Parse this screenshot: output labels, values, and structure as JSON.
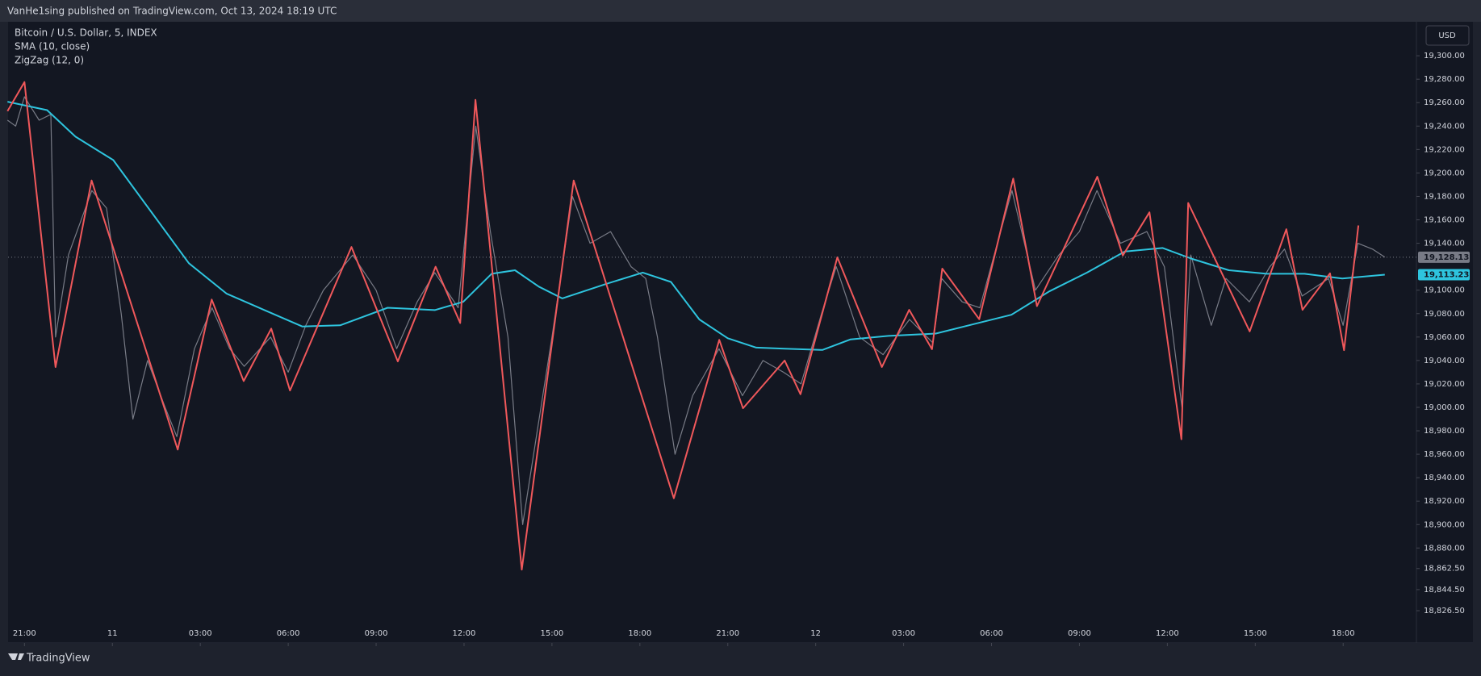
{
  "header": {
    "published": "VanHe1sing published on TradingView.com, Oct 13, 2024 18:19 UTC"
  },
  "footer": {
    "brand": "TradingView"
  },
  "currency": "USD",
  "chart_data": {
    "type": "line",
    "title": "Bitcoin / U.S. Dollar, 5, INDEX",
    "xlim": [
      -0.56,
      47.5
    ],
    "ylim": [
      18799,
      19329
    ],
    "xticks": [
      {
        "value": 0,
        "label": "21:00"
      },
      {
        "value": 3,
        "label": "11"
      },
      {
        "value": 6,
        "label": "03:00"
      },
      {
        "value": 9,
        "label": "06:00"
      },
      {
        "value": 12,
        "label": "09:00"
      },
      {
        "value": 15,
        "label": "12:00"
      },
      {
        "value": 18,
        "label": "15:00"
      },
      {
        "value": 21,
        "label": "18:00"
      },
      {
        "value": 24,
        "label": "21:00"
      },
      {
        "value": 27,
        "label": "12"
      },
      {
        "value": 30,
        "label": "03:00"
      },
      {
        "value": 33,
        "label": "06:00"
      },
      {
        "value": 36,
        "label": "09:00"
      },
      {
        "value": 39,
        "label": "12:00"
      },
      {
        "value": 42,
        "label": "15:00"
      },
      {
        "value": 45,
        "label": "18:00"
      }
    ],
    "yticks": [
      {
        "value": 19300,
        "label": "19,300.00"
      },
      {
        "value": 19280,
        "label": "19,280.00"
      },
      {
        "value": 19260,
        "label": "19,260.00"
      },
      {
        "value": 19240,
        "label": "19,240.00"
      },
      {
        "value": 19220,
        "label": "19,220.00"
      },
      {
        "value": 19200,
        "label": "19,200.00"
      },
      {
        "value": 19180,
        "label": "19,180.00"
      },
      {
        "value": 19160,
        "label": "19,160.00"
      },
      {
        "value": 19140,
        "label": "19,140.00"
      },
      {
        "value": 19100,
        "label": "19,100.00"
      },
      {
        "value": 19080,
        "label": "19,080.00"
      },
      {
        "value": 19060,
        "label": "19,060.00"
      },
      {
        "value": 19040,
        "label": "19,040.00"
      },
      {
        "value": 19020,
        "label": "19,020.00"
      },
      {
        "value": 19000,
        "label": "19,000.00"
      },
      {
        "value": 18980,
        "label": "18,980.00"
      },
      {
        "value": 18960,
        "label": "18,960.00"
      },
      {
        "value": 18940,
        "label": "18,940.00"
      },
      {
        "value": 18920,
        "label": "18,920.00"
      },
      {
        "value": 18900,
        "label": "18,900.00"
      },
      {
        "value": 18880,
        "label": "18,880.00"
      },
      {
        "value": 18862.5,
        "label": "18,862.50"
      },
      {
        "value": 18844.5,
        "label": "18,844.50"
      },
      {
        "value": 18826.5,
        "label": "18,826.50"
      }
    ],
    "series": [
      {
        "name": "Bitcoin / U.S. Dollar, 5, INDEX",
        "color": "#787b86",
        "last_value": 19128.13,
        "last_label": "19,128.13",
        "x": [
          -0.58,
          -0.3,
          0,
          0.5,
          0.9,
          1.06,
          1.5,
          2.3,
          2.8,
          3.3,
          3.7,
          4.2,
          4.8,
          5.2,
          5.8,
          6.4,
          7,
          7.5,
          8.4,
          9,
          9.6,
          10.2,
          11.2,
          12,
          12.7,
          13.4,
          14,
          14.8,
          15.4,
          15.9,
          16.5,
          17,
          17.5,
          18,
          18.7,
          19.3,
          20,
          20.7,
          21.2,
          21.6,
          22.2,
          22.8,
          23.7,
          24.5,
          25.2,
          25.9,
          26.5,
          27.2,
          27.7,
          28.5,
          29.3,
          30.2,
          31,
          31.3,
          32,
          32.6,
          33.2,
          33.7,
          34.5,
          35.3,
          36,
          36.6,
          37.4,
          38.3,
          38.9,
          39.5,
          39.8,
          40.5,
          41,
          41.8,
          42.5,
          43,
          43.6,
          44.5,
          45,
          45.5,
          46,
          46.42
        ],
        "values": [
          19245,
          19240,
          19265,
          19245,
          19250,
          19060,
          19130,
          19185,
          19170,
          19080,
          18990,
          19040,
          19000,
          18975,
          19050,
          19085,
          19050,
          19035,
          19060,
          19030,
          19070,
          19100,
          19130,
          19100,
          19050,
          19090,
          19115,
          19085,
          19240,
          19150,
          19060,
          18900,
          18980,
          19060,
          19180,
          19140,
          19150,
          19120,
          19110,
          19060,
          18960,
          19010,
          19050,
          19010,
          19040,
          19030,
          19020,
          19080,
          19120,
          19060,
          19045,
          19075,
          19055,
          19110,
          19090,
          19085,
          19140,
          19185,
          19100,
          19130,
          19150,
          19185,
          19140,
          19150,
          19120,
          19000,
          19130,
          19070,
          19110,
          19090,
          19120,
          19135,
          19095,
          19110,
          19070,
          19140,
          19135,
          19128.13
        ]
      },
      {
        "name": "SMA (10, close)",
        "color": "#2ec4de",
        "last_value": 19113.23,
        "last_label": "19,113.23",
        "x": [
          -0.58,
          0.77,
          1.74,
          3.03,
          4.32,
          5.61,
          6.9,
          8.19,
          9.48,
          10.77,
          12.39,
          14,
          14.97,
          15.94,
          16.74,
          17.55,
          18.35,
          19.81,
          21.1,
          22.06,
          23.03,
          24,
          24.97,
          25.94,
          27.23,
          28.19,
          29.48,
          31.1,
          32.39,
          33.68,
          34.97,
          36.26,
          37.55,
          38.84,
          39.81,
          41.1,
          42.39,
          43.68,
          44.97,
          46.42
        ],
        "values": [
          19260.8,
          19253.6,
          19231,
          19211,
          19167,
          19123,
          19097,
          19083,
          19069,
          19070,
          19085,
          19083,
          19090,
          19114,
          19117,
          19103,
          19093,
          19105,
          19115,
          19107,
          19075,
          19059,
          19051,
          19050,
          19049,
          19058,
          19061,
          19063,
          19071,
          19079,
          19099,
          19115,
          19133,
          19136,
          19127,
          19117,
          19114,
          19114,
          19110,
          19113.23
        ]
      },
      {
        "name": "ZigZag (12, 0)",
        "color": "#f0585b",
        "x": [
          -0.58,
          0,
          1.06,
          2.29,
          5.23,
          6.39,
          7.48,
          8.42,
          9.06,
          11.16,
          12.74,
          14.03,
          14.87,
          15.39,
          16.97,
          18.74,
          22.16,
          23.71,
          24.52,
          25.94,
          26.48,
          27.74,
          29.26,
          30.19,
          30.97,
          31.32,
          32.58,
          33.74,
          34.55,
          36.61,
          37.48,
          38.39,
          39.48,
          39.71,
          41.81,
          43.06,
          43.61,
          44.55,
          45.03,
          45.52
        ],
        "values": [
          19252.8,
          19277.6,
          19034.4,
          19193.6,
          18964,
          19092,
          19022.4,
          19067.2,
          19014.4,
          19136.8,
          19039.2,
          19120,
          19072,
          19262.4,
          18861.6,
          19193.6,
          18922.4,
          19057.6,
          18999.2,
          19040,
          19011.2,
          19128,
          19034.4,
          19083.2,
          19049.6,
          19118.4,
          19075.2,
          19195.2,
          19086.4,
          19196.8,
          19129.6,
          19166.4,
          18972.8,
          19174.4,
          19064.8,
          19152,
          19083.2,
          19114.4,
          19048.8,
          19155.2
        ]
      }
    ]
  }
}
